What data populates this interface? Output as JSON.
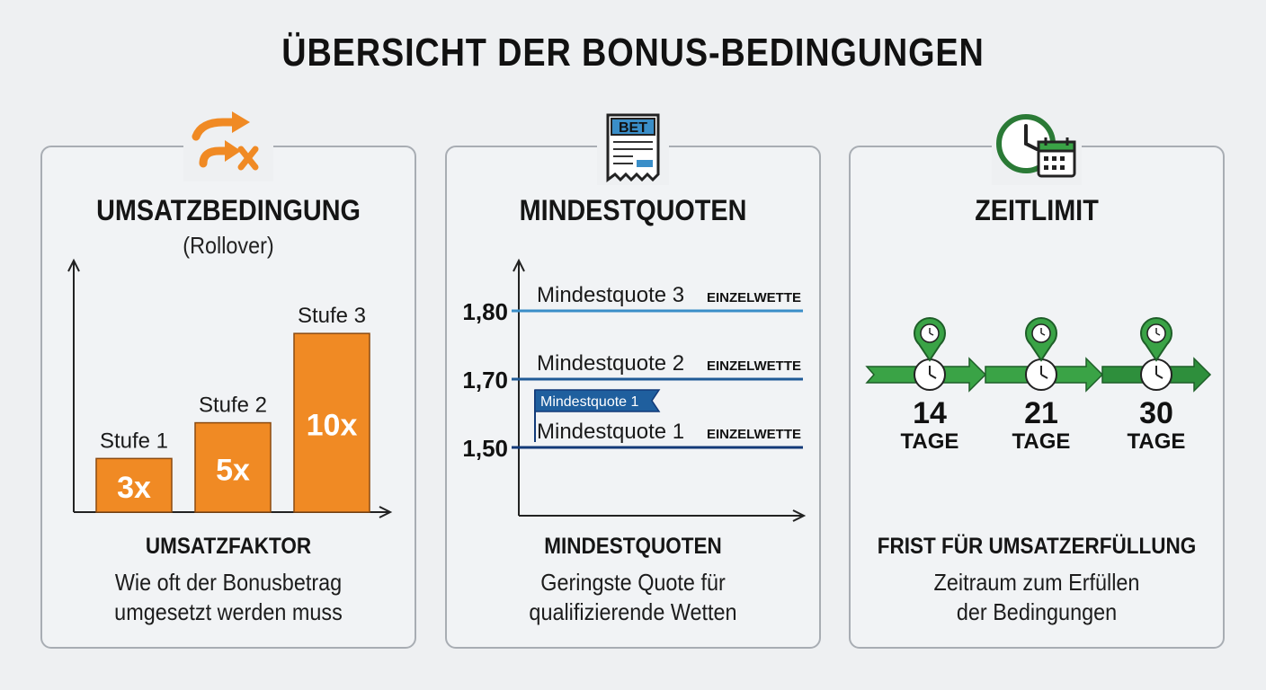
{
  "title": "ÜBERSICHT DER BONUS-BEDINGUNGEN",
  "colors": {
    "orange": "#f08a24",
    "blue": "#3a8ec8",
    "navy": "#123a78",
    "green": "#3aa346",
    "darkgreen": "#2a7a36"
  },
  "panels": {
    "rollover": {
      "icon": "arrows-cross-icon",
      "title": "UMSATZBEDINGUNG",
      "subtitle": "(Rollover)",
      "foot_title": "UMSATZFAKTOR",
      "foot_desc_1": "Wie oft der Bonusbetrag",
      "foot_desc_2": "umgesetzt werden muss"
    },
    "odds": {
      "icon": "bet-slip-icon",
      "icon_label": "BET",
      "title": "MINDESTQUOTEN",
      "foot_title": "MINDESTQUOTEN",
      "foot_desc_1": "Geringste Quote für",
      "foot_desc_2": "qualifizierende Wetten"
    },
    "time": {
      "icon": "clock-calendar-icon",
      "title": "ZEITLIMIT",
      "foot_title": "FRIST FÜR UMSATZERFÜLLUNG",
      "foot_desc_1": "Zeitraum zum Erfüllen",
      "foot_desc_2": "der Bedingungen"
    }
  },
  "chart_data": [
    {
      "type": "bar",
      "categories": [
        "Stufe 1",
        "Stufe 2",
        "Stufe 3"
      ],
      "values": [
        3,
        5,
        10
      ],
      "value_labels": [
        "3x",
        "5x",
        "10x"
      ],
      "ylim": [
        0,
        12
      ]
    },
    {
      "type": "line",
      "lines": [
        {
          "label": "Mindestquote 3",
          "tag": "EINZELWETTE",
          "value": 1.8,
          "tick": "1,80",
          "color": "#3a8ec8"
        },
        {
          "label": "Mindestquote 2",
          "tag": "EINZELWETTE",
          "value": 1.7,
          "tick": "1,70",
          "color": "#1f5a96"
        },
        {
          "label": "Mindestquote 1",
          "tag": "EINZELWETTE",
          "value": 1.5,
          "tick": "1,50",
          "color": "#123a78"
        }
      ],
      "flag_label": "Mindestquote 1"
    },
    {
      "type": "timeline",
      "steps": [
        {
          "number": "14",
          "unit": "TAGE"
        },
        {
          "number": "21",
          "unit": "TAGE"
        },
        {
          "number": "30",
          "unit": "TAGE"
        }
      ]
    }
  ]
}
